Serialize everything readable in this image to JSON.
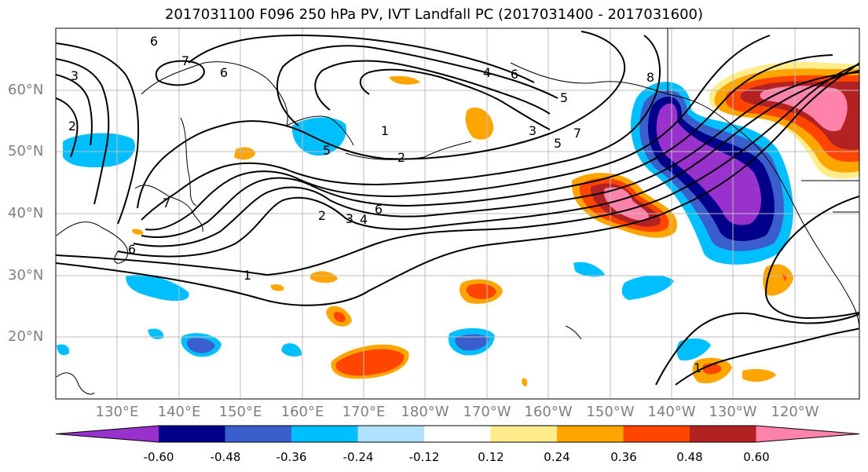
{
  "title": "2017031100 F096 250 hPa PV, IVT Landfall PC (2017031400 - 2017031600)",
  "lat_ticks": [
    "60°N",
    "50°N",
    "40°N",
    "30°N",
    "20°N"
  ],
  "lon_ticks": [
    "130°E",
    "140°E",
    "150°E",
    "160°E",
    "170°E",
    "180°W",
    "170°W",
    "160°W",
    "150°W",
    "140°W",
    "130°W",
    "120°W"
  ],
  "contour_labels": [
    "6",
    "7",
    "3",
    "2",
    "6",
    "5",
    "1",
    "2",
    "3",
    "4",
    "5",
    "6",
    "7",
    "8",
    "5",
    "4",
    "3",
    "2",
    "6",
    "7",
    "1",
    "1",
    "6"
  ],
  "colorbar": {
    "labels": [
      "-0.60",
      "-0.48",
      "-0.36",
      "-0.24",
      "-0.12",
      "0.12",
      "0.24",
      "0.36",
      "0.48",
      "0.60"
    ],
    "colors": [
      "#9932CC",
      "#00008B",
      "#3A5FCD",
      "#00BFFF",
      "#B0E2FF",
      "#FFFFFF",
      "#FFEC8B",
      "#FFA500",
      "#FF4500",
      "#B22222",
      "#FF82AB"
    ]
  }
}
